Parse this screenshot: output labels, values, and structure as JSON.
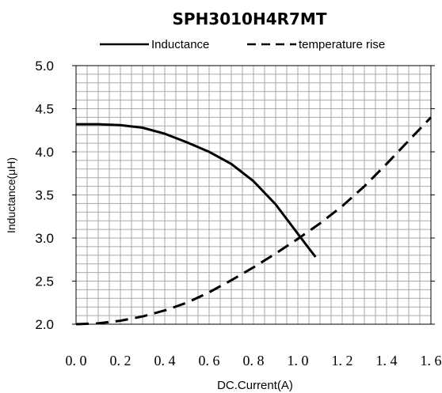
{
  "chart_data": {
    "type": "line",
    "title": "SPH3010H4R7MT",
    "xlabel": "DC.Current(A)",
    "ylabel": "Inductance(μH)",
    "xlim": [
      0,
      1.6
    ],
    "ylim": [
      2.0,
      5.0
    ],
    "x_ticks": [
      "0.0",
      "0.2",
      "0.4",
      "0.6",
      "0.8",
      "1.0",
      "1.2",
      "1.4",
      "1.6"
    ],
    "y_ticks": [
      "2.0",
      "2.5",
      "3.0",
      "3.5",
      "4.0",
      "4.5",
      "5.0"
    ],
    "grid": true,
    "legend_position": "top",
    "secondary_y_axis": true,
    "series": [
      {
        "name": "Inductance",
        "style": "solid",
        "color": "#000000",
        "x": [
          0.0,
          0.1,
          0.2,
          0.3,
          0.4,
          0.5,
          0.6,
          0.7,
          0.8,
          0.9,
          1.0,
          1.05,
          1.08
        ],
        "y": [
          4.32,
          4.32,
          4.31,
          4.28,
          4.21,
          4.11,
          4.0,
          3.86,
          3.66,
          3.39,
          3.05,
          2.88,
          2.78
        ]
      },
      {
        "name": "temperature rise",
        "style": "dashed",
        "color": "#000000",
        "x": [
          0.0,
          0.1,
          0.2,
          0.3,
          0.4,
          0.5,
          0.6,
          0.7,
          0.8,
          0.9,
          1.0,
          1.1,
          1.2,
          1.3,
          1.4,
          1.5,
          1.6
        ],
        "y": [
          2.0,
          2.01,
          2.04,
          2.09,
          2.16,
          2.25,
          2.37,
          2.51,
          2.66,
          2.82,
          2.99,
          3.17,
          3.37,
          3.6,
          3.86,
          4.13,
          4.4
        ]
      }
    ]
  }
}
